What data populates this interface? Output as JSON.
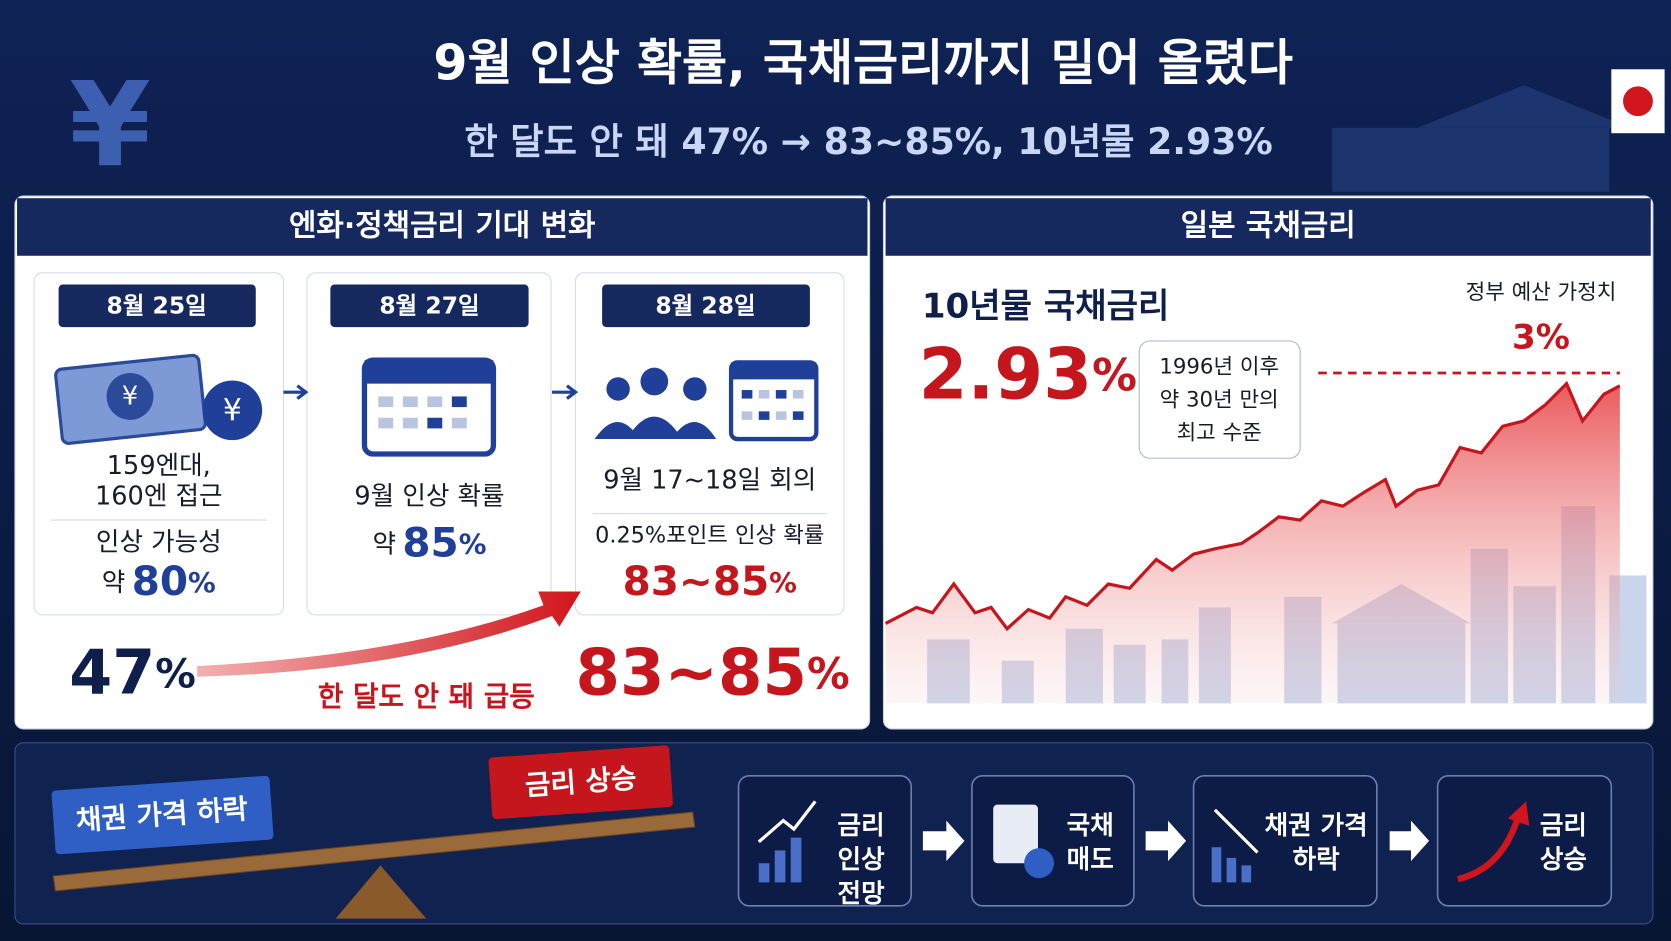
{
  "header": {
    "title": "9월 인상 확률, 국채금리까지 밀어 올렸다",
    "subtitle": "한 달도 안 돼 47% → 83~85%, 10년물 2.93%"
  },
  "left_panel": {
    "title": "엔화·정책금리 기대 변화",
    "cards": [
      {
        "date": "8월 25일",
        "lines": [
          "159엔대,",
          "160엔 접근"
        ],
        "label": "인상 가능성",
        "prefix": "약",
        "value": "80",
        "unit": "%"
      },
      {
        "date": "8월 27일",
        "lines": [
          "9월 인상 확률"
        ],
        "prefix": "약",
        "value": "85",
        "unit": "%"
      },
      {
        "date": "8월 28일",
        "lines": [
          "9월 17~18일 회의"
        ],
        "label": "0.25%포인트 인상 확률",
        "value": "83~85",
        "unit": "%"
      }
    ],
    "from": {
      "value": "47",
      "unit": "%"
    },
    "arrow_label": "한 달도 안 돼 급등",
    "to": {
      "value": "83~85",
      "unit": "%"
    }
  },
  "right_panel": {
    "title": "일본 국채금리",
    "label": "10년물 국채금리",
    "value": "2.93",
    "unit": "%",
    "note": [
      "1996년 이후",
      "약 30년 만의",
      "최고 수준"
    ],
    "target_label": "정부 예산 가정치",
    "target_value": "3%"
  },
  "bottom_panel": {
    "seesaw": {
      "left": "채권 가격 하락",
      "right": "금리 상승"
    },
    "steps": [
      [
        "금리",
        "인상",
        "전망"
      ],
      [
        "국채",
        "매도"
      ],
      [
        "채권 가격",
        "하락"
      ],
      [
        "금리",
        "상승"
      ]
    ]
  }
}
